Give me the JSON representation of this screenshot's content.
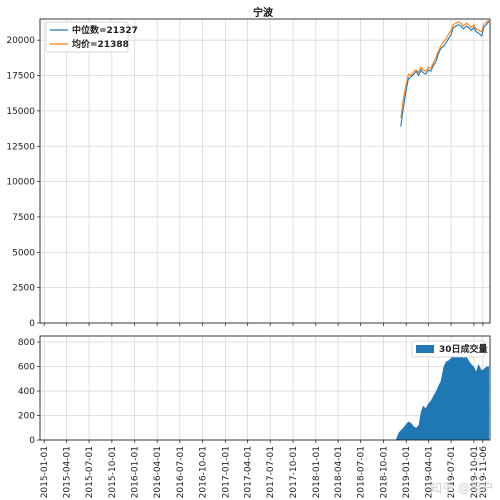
{
  "title": "宁波",
  "watermark": "知乎 @用户",
  "chart_data": [
    {
      "type": "line",
      "title": "宁波",
      "ylim": [
        0,
        21500
      ],
      "yticks": [
        0,
        2500,
        5000,
        7500,
        10000,
        12500,
        15000,
        17500,
        20000
      ],
      "grid": true,
      "legend_position": "top-left",
      "series": [
        {
          "name": "中位数=21327",
          "color": "#1f77b4",
          "x": [
            "2018-12-10",
            "2018-12-20",
            "2019-01-01",
            "2019-01-10",
            "2019-01-20",
            "2019-02-01",
            "2019-02-10",
            "2019-02-20",
            "2019-03-01",
            "2019-03-10",
            "2019-03-20",
            "2019-04-01",
            "2019-04-10",
            "2019-04-20",
            "2019-05-01",
            "2019-05-10",
            "2019-05-20",
            "2019-06-01",
            "2019-06-10",
            "2019-06-20",
            "2019-07-01",
            "2019-07-10",
            "2019-07-20",
            "2019-08-01",
            "2019-08-10",
            "2019-08-20",
            "2019-09-01",
            "2019-09-10",
            "2019-09-20",
            "2019-10-01",
            "2019-10-10",
            "2019-10-20",
            "2019-11-01",
            "2019-11-10",
            "2019-11-20",
            "2019-12-01"
          ],
          "values": [
            13900,
            15200,
            16500,
            17300,
            17400,
            17600,
            17800,
            17500,
            17900,
            17700,
            17600,
            17900,
            17800,
            18200,
            18500,
            19000,
            19400,
            19600,
            19800,
            20100,
            20400,
            20900,
            21000,
            21100,
            21000,
            20800,
            21000,
            20900,
            20700,
            20900,
            20600,
            20500,
            20300,
            20900,
            21100,
            21327
          ]
        },
        {
          "name": "均价=21388",
          "color": "#ff7f0e",
          "x": [
            "2018-12-10",
            "2018-12-20",
            "2019-01-01",
            "2019-01-10",
            "2019-01-20",
            "2019-02-01",
            "2019-02-10",
            "2019-02-20",
            "2019-03-01",
            "2019-03-10",
            "2019-03-20",
            "2019-04-01",
            "2019-04-10",
            "2019-04-20",
            "2019-05-01",
            "2019-05-10",
            "2019-05-20",
            "2019-06-01",
            "2019-06-10",
            "2019-06-20",
            "2019-07-01",
            "2019-07-10",
            "2019-07-20",
            "2019-08-01",
            "2019-08-10",
            "2019-08-20",
            "2019-09-01",
            "2019-09-10",
            "2019-09-20",
            "2019-10-01",
            "2019-10-10",
            "2019-10-20",
            "2019-11-01",
            "2019-11-10",
            "2019-11-20",
            "2019-12-01"
          ],
          "values": [
            14500,
            15800,
            16900,
            17600,
            17500,
            17800,
            17900,
            17700,
            18100,
            17900,
            17800,
            18100,
            18000,
            18400,
            18800,
            19200,
            19600,
            19900,
            20100,
            20400,
            20700,
            21100,
            21200,
            21300,
            21200,
            21000,
            21200,
            21100,
            20900,
            21100,
            20800,
            20700,
            20600,
            21100,
            21300,
            21388
          ]
        }
      ]
    },
    {
      "type": "area",
      "ylim": [
        0,
        850
      ],
      "yticks": [
        0,
        200,
        400,
        600,
        800
      ],
      "grid": true,
      "legend_position": "top-right",
      "xticks": [
        "2015-01-01",
        "2015-04-01",
        "2015-07-01",
        "2015-10-01",
        "2016-01-01",
        "2016-04-01",
        "2016-07-01",
        "2016-10-01",
        "2017-01-01",
        "2017-04-01",
        "2017-07-01",
        "2017-10-01",
        "2018-01-01",
        "2018-04-01",
        "2018-07-01",
        "2018-10-01",
        "2019-01-01",
        "2019-04-01",
        "2019-07-01",
        "2019-10-01",
        "2019-11-06"
      ],
      "series": [
        {
          "name": "30日成交量",
          "color": "#1f77b4",
          "x": [
            "2018-11-20",
            "2018-12-01",
            "2018-12-10",
            "2018-12-20",
            "2019-01-01",
            "2019-01-10",
            "2019-01-20",
            "2019-02-01",
            "2019-02-10",
            "2019-02-20",
            "2019-03-01",
            "2019-03-10",
            "2019-03-20",
            "2019-04-01",
            "2019-04-10",
            "2019-04-20",
            "2019-05-01",
            "2019-05-10",
            "2019-05-20",
            "2019-06-01",
            "2019-06-10",
            "2019-06-20",
            "2019-07-01",
            "2019-07-10",
            "2019-07-20",
            "2019-08-01",
            "2019-08-10",
            "2019-08-20",
            "2019-09-01",
            "2019-09-10",
            "2019-09-20",
            "2019-10-01",
            "2019-10-10",
            "2019-10-20",
            "2019-11-01",
            "2019-11-10",
            "2019-11-20",
            "2019-12-01"
          ],
          "values": [
            0,
            60,
            80,
            100,
            130,
            150,
            140,
            110,
            100,
            120,
            230,
            280,
            260,
            300,
            320,
            360,
            400,
            440,
            480,
            600,
            640,
            650,
            670,
            700,
            720,
            700,
            690,
            670,
            680,
            650,
            620,
            600,
            560,
            620,
            570,
            580,
            600,
            600
          ]
        }
      ]
    }
  ]
}
